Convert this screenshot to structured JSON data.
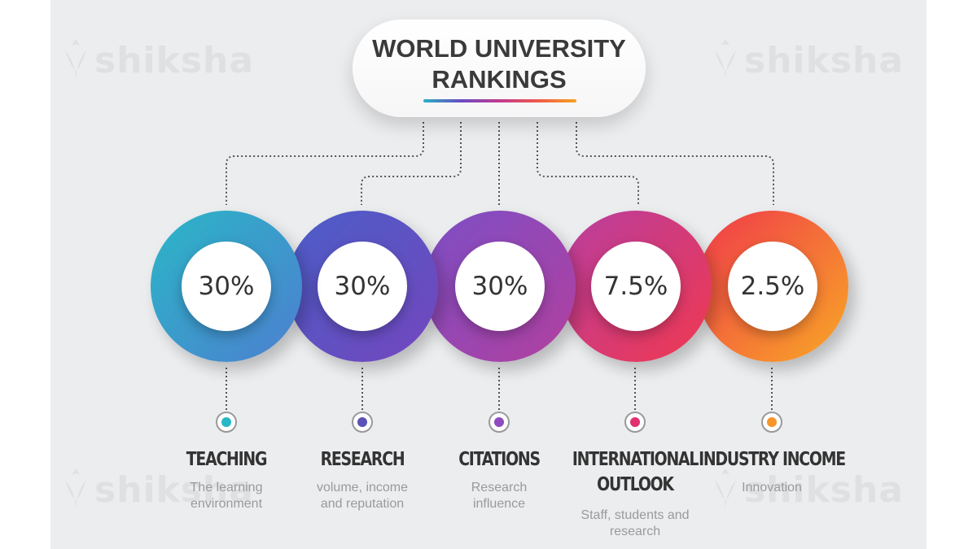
{
  "title": {
    "line1": "WORLD UNIVERSITY",
    "line2": "RANKINGS"
  },
  "watermark": "shiksha",
  "criteria": [
    {
      "percent": "30%",
      "label": "TEACHING",
      "desc": [
        "The learning",
        "environment"
      ],
      "color": "#27b7c6"
    },
    {
      "percent": "30%",
      "label": "RESEARCH",
      "desc": [
        "volume, income",
        "and reputation"
      ],
      "color": "#5a52b6"
    },
    {
      "percent": "30%",
      "label": "CITATIONS",
      "desc": [
        "Research",
        "influence"
      ],
      "color": "#8f4bc0"
    },
    {
      "percent": "7.5%",
      "label": [
        "INTERNATIONAL",
        "OUTLOOK"
      ],
      "desc": [
        "Staff, students and",
        "research"
      ],
      "color": "#e0306f"
    },
    {
      "percent": "2.5%",
      "label": "INDUSTRY INCOME",
      "desc": [
        "Innovation"
      ],
      "color": "#f7942a"
    }
  ],
  "colors": {
    "teaching_ring": [
      "#2ab6c6",
      "#4d7fd0"
    ],
    "research_ring": [
      "#4a5ec8",
      "#7446bd"
    ],
    "citations_ring": [
      "#7c4fc6",
      "#b23f9e"
    ],
    "international_ring": [
      "#b83ea0",
      "#f0384f"
    ],
    "industry_ring": [
      "#f0394b",
      "#f8a825"
    ],
    "connector": "#555555",
    "marker_border": "#9a9a9a"
  }
}
